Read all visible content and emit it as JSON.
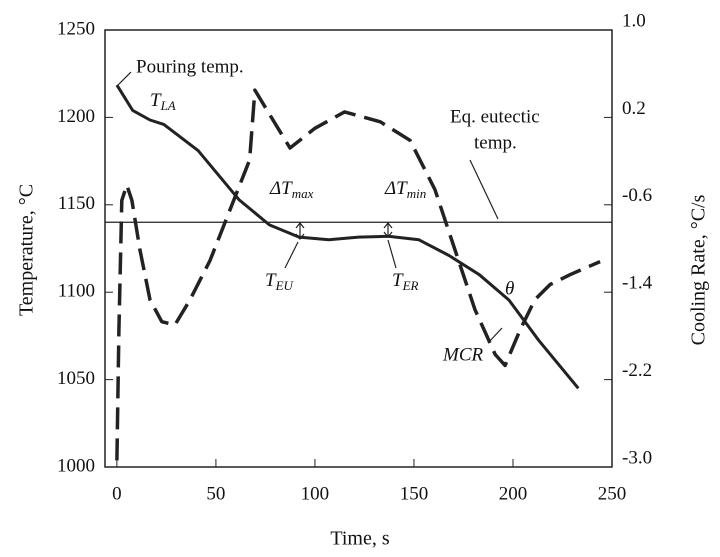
{
  "chart_data": {
    "type": "line",
    "x_label": "Time, s",
    "y_label": "Temperature, °C",
    "y2_label": "Cooling Rate, °C/s",
    "xlim": [
      -6,
      250
    ],
    "xticks": [
      0,
      50,
      100,
      150,
      200,
      250
    ],
    "ylim": [
      1000,
      1250
    ],
    "yticks": [
      1000,
      1050,
      1100,
      1150,
      1200,
      1250
    ],
    "y2lim": [
      -3,
      1
    ],
    "y2ticks": [
      {
        "value": -3,
        "label": "-3.0"
      },
      -2.2,
      -1.4,
      -0.6,
      0.2,
      {
        "value": 1,
        "label": "1.0"
      }
    ],
    "reference_line": 1140,
    "series": [
      {
        "color": "#222",
        "dash": false,
        "x": [
          0,
          8,
          16.7,
          23.7,
          41,
          61.6,
          77,
          92,
          107,
          122,
          137,
          152.5,
          167.7,
          183,
          198,
          213,
          233
        ],
        "values": [
          1218.5,
          1204,
          1198.5,
          1196,
          1181,
          1153,
          1138.5,
          1131.5,
          1130,
          1131.5,
          1132,
          1130,
          1121,
          1110,
          1095.5,
          1072.5,
          1045
        ]
      },
      {
        "color": "#222",
        "dash": true,
        "axis": "y2",
        "x": [
          0,
          1,
          2.5,
          5,
          7.6,
          11.6,
          16.7,
          22.7,
          29.3,
          36.9,
          47,
          57,
          67,
          69.7,
          78,
          87.4,
          100,
          115,
          133,
          148,
          160.6,
          170.7,
          180.8,
          191,
          196,
          203.5,
          211,
          218.7,
          228.8,
          244
        ],
        "values": [
          -2.94,
          -1.75,
          -0.56,
          -0.42,
          -0.56,
          -1.01,
          -1.47,
          -1.67,
          -1.7,
          -1.47,
          -1.11,
          -0.65,
          -0.19,
          0.45,
          0.2,
          -0.08,
          0.1,
          0.25,
          0.16,
          -0.01,
          -0.46,
          -1.01,
          -1.56,
          -1.97,
          -2.07,
          -1.75,
          -1.47,
          -1.33,
          -1.24,
          -1.12
        ]
      }
    ],
    "annotations": {
      "pouring": "Pouring temp.",
      "t_la": {
        "text": "T",
        "sub": "LA"
      },
      "eutectic": [
        "Eq. eutectic",
        "temp."
      ],
      "dt_max": {
        "text": "ΔT",
        "sub": "max"
      },
      "dt_min": {
        "text": "ΔT",
        "sub": "min"
      },
      "t_eu": {
        "text": "T",
        "sub": "EU"
      },
      "t_er": {
        "text": "T",
        "sub": "ER"
      },
      "theta": "θ",
      "mcr": "MCR"
    }
  }
}
